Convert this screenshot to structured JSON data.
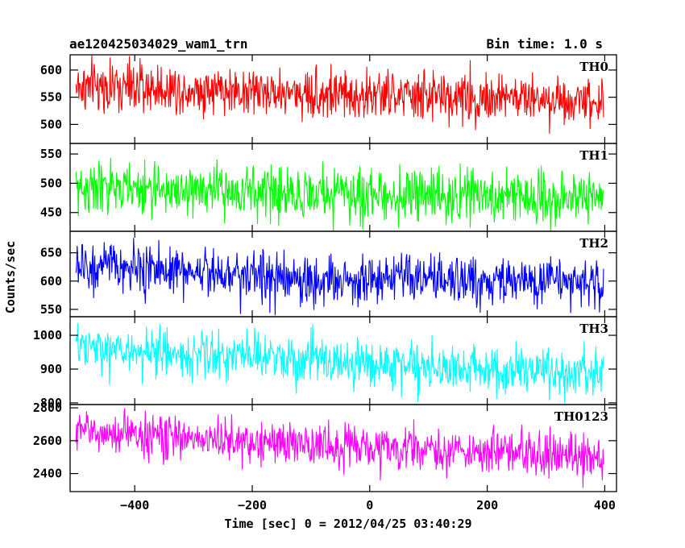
{
  "header": {
    "title": "ae120425034029_wam1_trn",
    "bin_time": "Bin time: 1.0 s"
  },
  "chart_data": {
    "type": "line",
    "xlabel": "Time [sec] 0 = 2012/04/25 03:40:29",
    "ylabel": "Counts/sec",
    "xlim": [
      -510,
      420
    ],
    "x_ticks": [
      -400,
      -200,
      0,
      200,
      400
    ],
    "x_tick_labels": [
      "−400",
      "−200",
      "0",
      "200",
      "400"
    ],
    "x_range": [
      -500,
      398
    ],
    "x_step": 1,
    "panels": [
      {
        "name": "TH0",
        "color": "#ff0000",
        "ylim": [
          465,
          628
        ],
        "y_ticks": [
          500,
          550,
          600
        ],
        "y_tick_labels": [
          "500",
          "550",
          "600"
        ],
        "trend": [
          [
            -500,
            570
          ],
          [
            -300,
            565
          ],
          [
            0,
            553
          ],
          [
            200,
            550
          ],
          [
            398,
            545
          ]
        ],
        "noise": 23
      },
      {
        "name": "TH1",
        "color": "#00ff00",
        "ylim": [
          418,
          568
        ],
        "y_ticks": [
          450,
          500,
          550
        ],
        "y_tick_labels": [
          "450",
          "500",
          "550"
        ],
        "trend": [
          [
            -500,
            492
          ],
          [
            -200,
            485
          ],
          [
            0,
            480
          ],
          [
            200,
            478
          ],
          [
            398,
            476
          ]
        ],
        "noise": 22
      },
      {
        "name": "TH2",
        "color": "#0000ff",
        "ylim": [
          537,
          688
        ],
        "y_ticks": [
          550,
          600,
          650
        ],
        "y_tick_labels": [
          "550",
          "600",
          "650"
        ],
        "trend": [
          [
            -500,
            625
          ],
          [
            -200,
            615
          ],
          [
            -160,
            600
          ],
          [
            0,
            603
          ],
          [
            200,
            600
          ],
          [
            398,
            598
          ]
        ],
        "noise": 22
      },
      {
        "name": "TH3",
        "color": "#00ffff",
        "ylim": [
          795,
          1055
        ],
        "y_ticks": [
          800,
          900,
          1000
        ],
        "y_tick_labels": [
          "800",
          "900",
          "1000"
        ],
        "trend": [
          [
            -500,
            960
          ],
          [
            -200,
            935
          ],
          [
            0,
            915
          ],
          [
            200,
            900
          ],
          [
            398,
            880
          ]
        ],
        "noise": 35
      },
      {
        "name": "TH0123",
        "color": "#ff00ff",
        "ylim": [
          2290,
          2820
        ],
        "y_ticks": [
          2400,
          2600,
          2800
        ],
        "y_tick_labels": [
          "2400",
          "2600",
          "2800"
        ],
        "trend": [
          [
            -500,
            2660
          ],
          [
            -200,
            2590
          ],
          [
            0,
            2560
          ],
          [
            200,
            2530
          ],
          [
            398,
            2500
          ]
        ],
        "noise": 65
      }
    ]
  }
}
